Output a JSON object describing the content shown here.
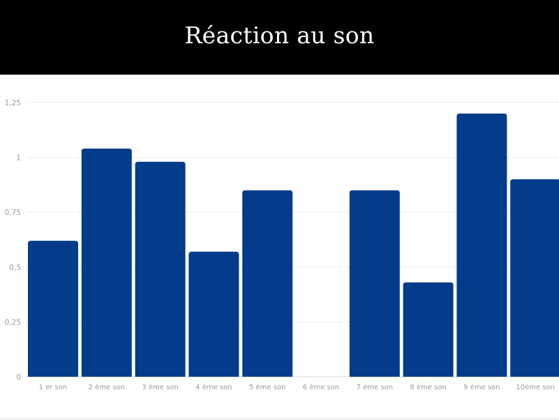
{
  "header": {
    "title": "Réaction au son"
  },
  "colors": {
    "header_bg": "#000000",
    "title_text": "#ffffff",
    "bar": "#023c8b",
    "grid": "#ececec",
    "axis_text": "#9a9a9a"
  },
  "chart_data": {
    "type": "bar",
    "title": "Réaction au son",
    "xlabel": "",
    "ylabel": "",
    "categories": [
      "1 er son",
      "2 ème son",
      "3 ème son",
      "4 ème son",
      "5 ème son",
      "6 ème son",
      "7 ème son",
      "8 ème son",
      "9 ème son",
      "10ème son"
    ],
    "values": [
      0.62,
      1.04,
      0.98,
      0.57,
      0.85,
      0,
      0.85,
      0.43,
      1.2,
      0.9
    ],
    "ylim": [
      0,
      1.25
    ],
    "yticks": [
      0,
      0.25,
      0.5,
      0.75,
      1,
      1.25
    ],
    "ytick_labels": [
      "0",
      "0,25",
      "0,5",
      "0,75",
      "1",
      "1,25"
    ],
    "grid": true,
    "legend": "none"
  }
}
